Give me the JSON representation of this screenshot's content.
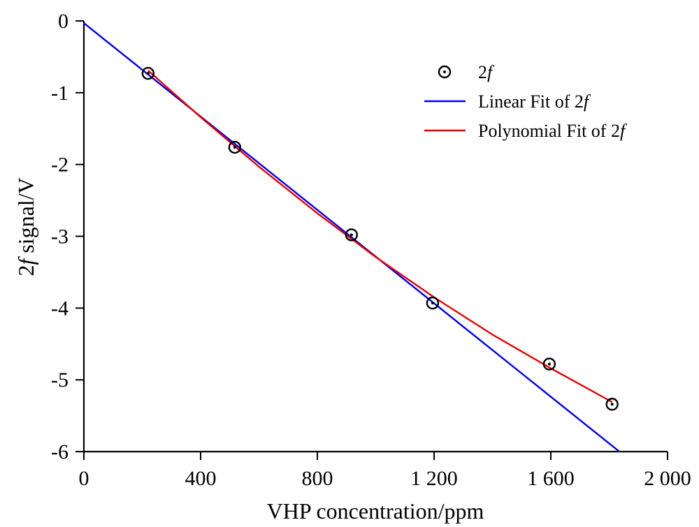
{
  "chart_data": {
    "type": "scatter",
    "xlabel": "VHP concentration/ppm",
    "ylabel": "2f signal/V",
    "xlim": [
      0,
      2000
    ],
    "ylim": [
      -6,
      0
    ],
    "x_ticks": [
      {
        "value": 0,
        "label": "0"
      },
      {
        "value": 400,
        "label": "400"
      },
      {
        "value": 800,
        "label": "800"
      },
      {
        "value": 1200,
        "label": "1 200"
      },
      {
        "value": 1600,
        "label": "1 600"
      },
      {
        "value": 2000,
        "label": "2 000"
      }
    ],
    "y_ticks": [
      {
        "value": 0,
        "label": "0"
      },
      {
        "value": -1,
        "label": "-1"
      },
      {
        "value": -2,
        "label": "-2"
      },
      {
        "value": -3,
        "label": "-3"
      },
      {
        "value": -4,
        "label": "-4"
      },
      {
        "value": -5,
        "label": "-5"
      },
      {
        "value": -6,
        "label": "-6"
      }
    ],
    "legend_position": "top-right",
    "grid": false,
    "series": [
      {
        "name": "2f",
        "kind": "scatter",
        "marker": "circle-dot",
        "color": "#000000",
        "points": [
          {
            "x": 220,
            "y": -0.73
          },
          {
            "x": 517,
            "y": -1.76
          },
          {
            "x": 917,
            "y": -2.98
          },
          {
            "x": 1195,
            "y": -3.93
          },
          {
            "x": 1595,
            "y": -4.78
          },
          {
            "x": 1810,
            "y": -5.34
          }
        ]
      },
      {
        "name": "Linear Fit of 2f",
        "kind": "line",
        "color": "#0000e6",
        "points": [
          {
            "x": 0,
            "y": -0.03
          },
          {
            "x": 1835,
            "y": -6.0
          }
        ]
      },
      {
        "name": "Polynomial Fit of 2f",
        "kind": "line",
        "color": "#e60000",
        "points": [
          {
            "x": 220,
            "y": -0.69
          },
          {
            "x": 400,
            "y": -1.34
          },
          {
            "x": 600,
            "y": -2.03
          },
          {
            "x": 800,
            "y": -2.68
          },
          {
            "x": 1000,
            "y": -3.29
          },
          {
            "x": 1200,
            "y": -3.85
          },
          {
            "x": 1400,
            "y": -4.37
          },
          {
            "x": 1600,
            "y": -4.84
          },
          {
            "x": 1810,
            "y": -5.31
          }
        ]
      }
    ]
  },
  "legend": {
    "items": [
      {
        "base": "2",
        "italic": "f",
        "suffix": "",
        "kind": "marker"
      },
      {
        "base": "Linear Fit of 2",
        "italic": "f",
        "suffix": "",
        "kind": "line",
        "color": "#0000e6"
      },
      {
        "base": "Polynomial Fit of 2",
        "italic": "f",
        "suffix": "",
        "kind": "line",
        "color": "#e60000"
      }
    ]
  },
  "ylabel_parts": {
    "base": "2",
    "italic": "f",
    "suffix": " signal/V"
  }
}
